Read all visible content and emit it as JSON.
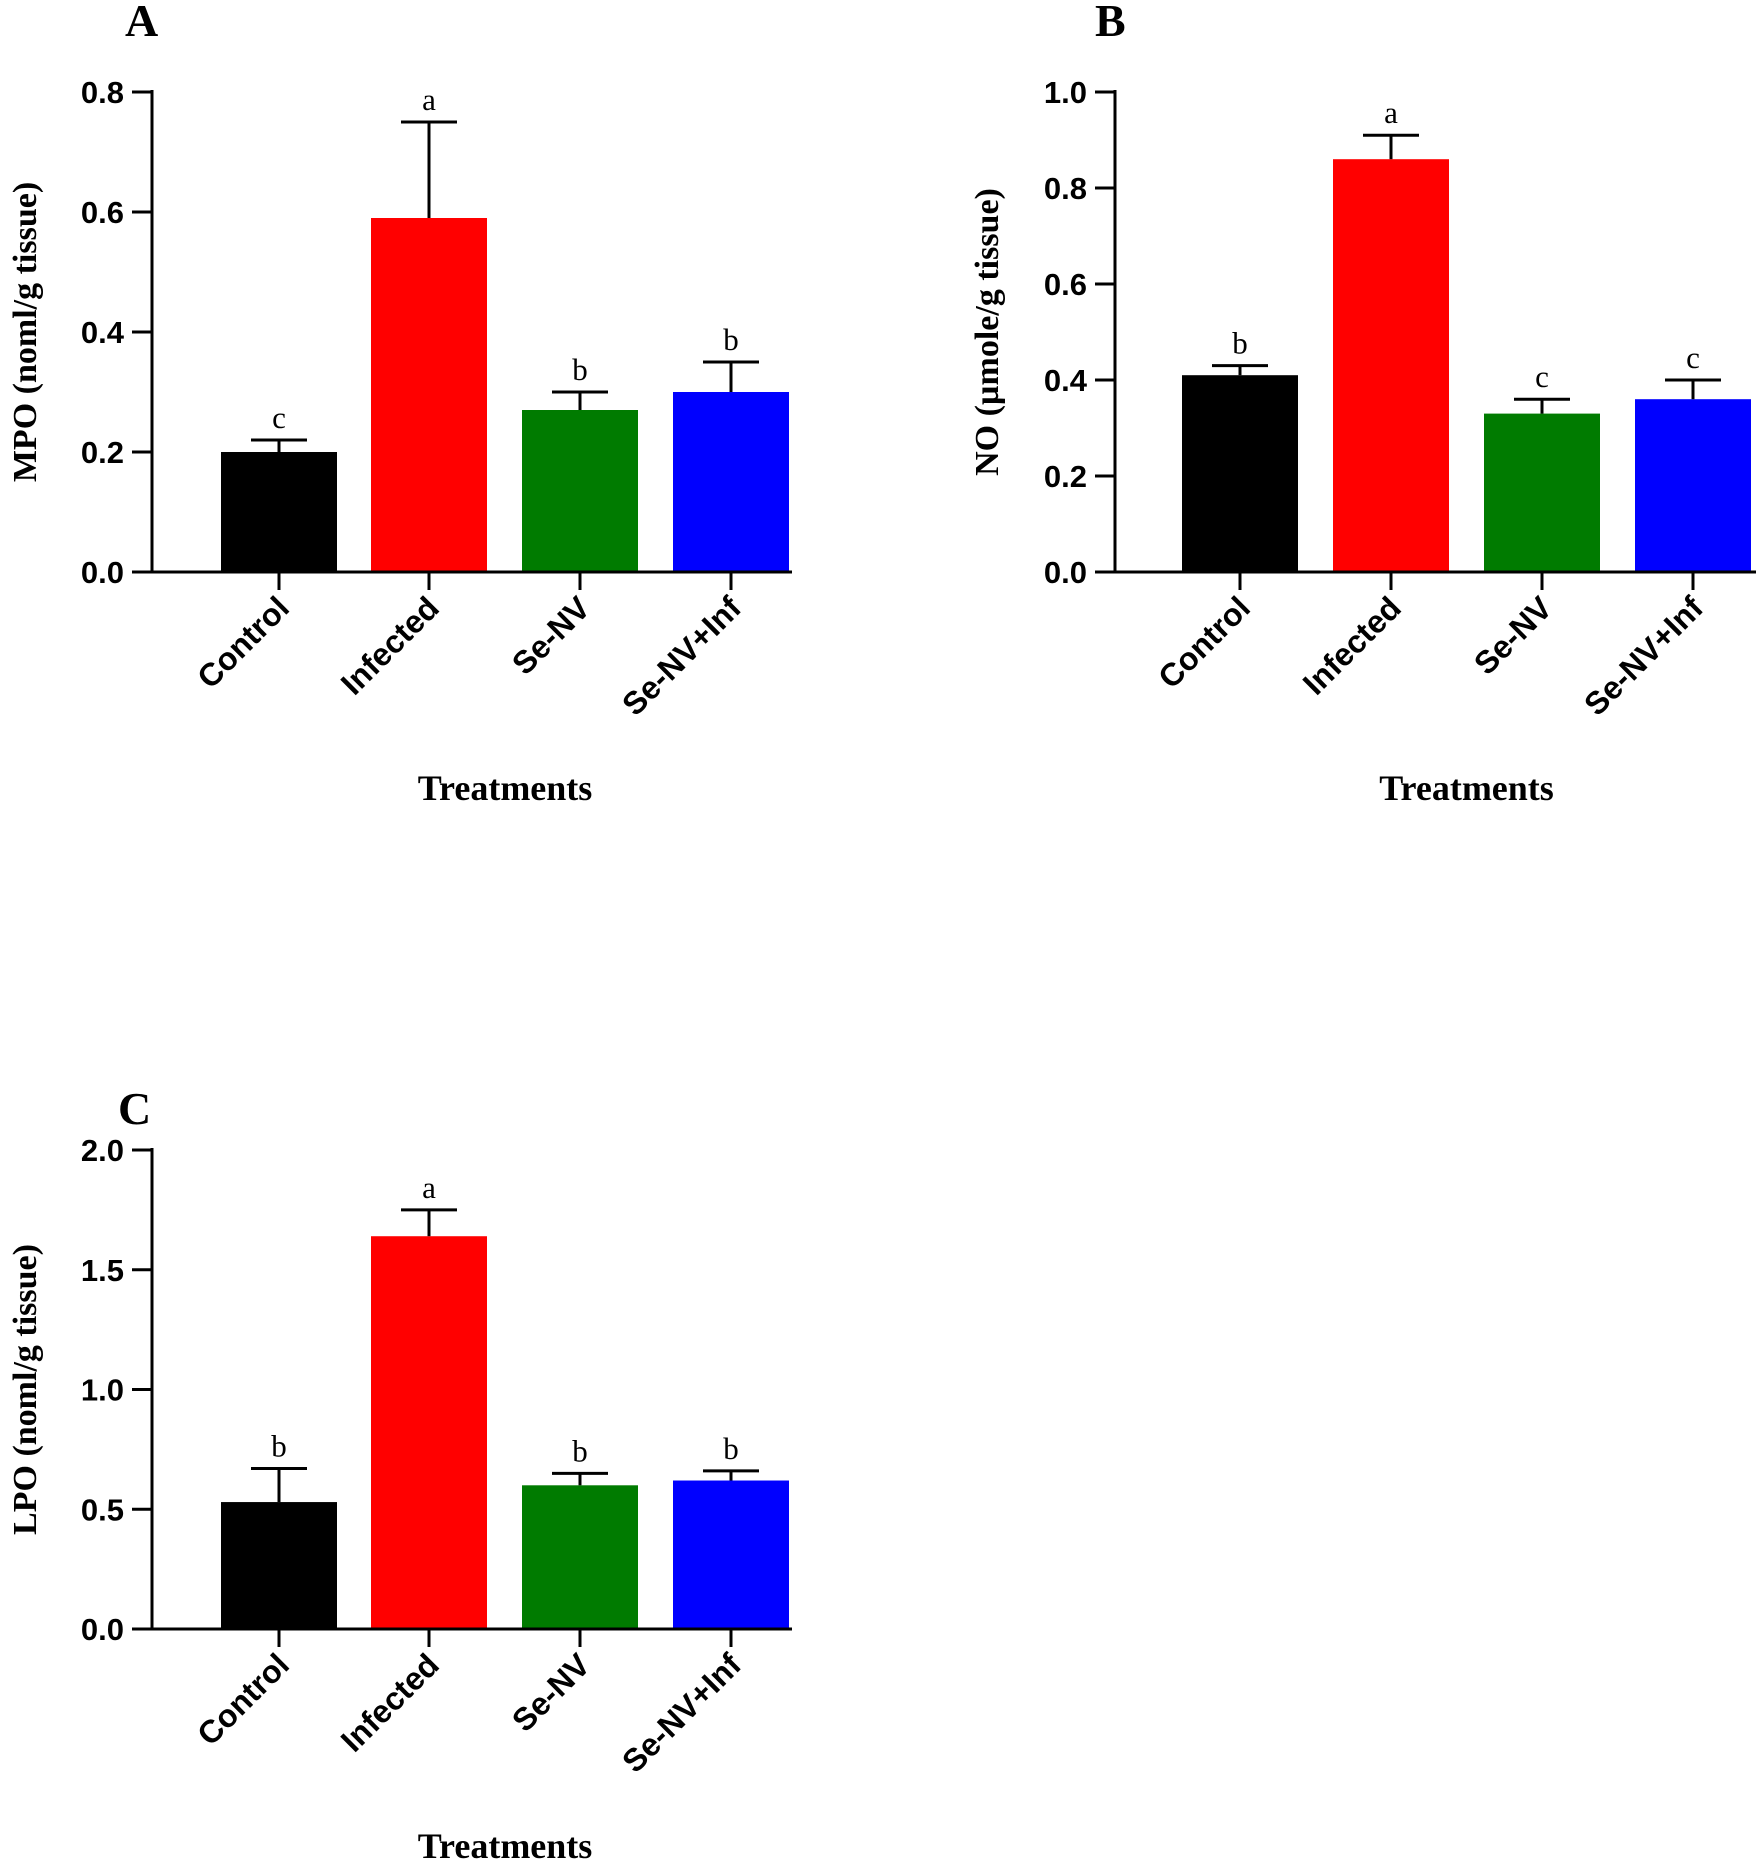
{
  "chart_data": [
    {
      "panel": "A",
      "type": "bar",
      "title": "",
      "xlabel": "Treatments",
      "ylabel": "MPO (noml/g tissue)",
      "ylim": [
        0,
        0.8
      ],
      "ytick_values": [
        0.0,
        0.2,
        0.4,
        0.6,
        0.8
      ],
      "yticks": [
        "0.0",
        "0.2",
        "0.4",
        "0.6",
        "0.8"
      ],
      "categories": [
        "Control",
        "Infected",
        "Se-NV",
        "Se-NV+Inf"
      ],
      "values": [
        0.2,
        0.59,
        0.27,
        0.3
      ],
      "errors": [
        0.02,
        0.16,
        0.03,
        0.05
      ],
      "significance": [
        "c",
        "a",
        "b",
        "b"
      ],
      "colors": [
        "#000000",
        "#ff0000",
        "#007b00",
        "#0000ff"
      ]
    },
    {
      "panel": "B",
      "type": "bar",
      "title": "",
      "xlabel": "Treatments",
      "ylabel": "NO (µmole/g tissue)",
      "ylim": [
        0,
        1.0
      ],
      "ytick_values": [
        0.0,
        0.2,
        0.4,
        0.6,
        0.8,
        1.0
      ],
      "yticks": [
        "0.0",
        "0.2",
        "0.4",
        "0.6",
        "0.8",
        "1.0"
      ],
      "categories": [
        "Control",
        "Infected",
        "Se-NV",
        "Se-NV+Inf"
      ],
      "values": [
        0.41,
        0.86,
        0.33,
        0.36
      ],
      "errors": [
        0.02,
        0.05,
        0.03,
        0.04
      ],
      "significance": [
        "b",
        "a",
        "c",
        "c"
      ],
      "colors": [
        "#000000",
        "#ff0000",
        "#007b00",
        "#0000ff"
      ]
    },
    {
      "panel": "C",
      "type": "bar",
      "title": "",
      "xlabel": "Treatments",
      "ylabel": "LPO (noml/g tissue)",
      "ylim": [
        0,
        2.0
      ],
      "ytick_values": [
        0.0,
        0.5,
        1.0,
        1.5,
        2.0
      ],
      "yticks": [
        "0.0",
        "0.5",
        "1.0",
        "1.5",
        "2.0"
      ],
      "categories": [
        "Control",
        "Infected",
        "Se-NV",
        "Se-NV+Inf"
      ],
      "values": [
        0.53,
        1.64,
        0.6,
        0.62
      ],
      "errors": [
        0.14,
        0.11,
        0.05,
        0.04
      ],
      "significance": [
        "b",
        "a",
        "b",
        "b"
      ],
      "colors": [
        "#000000",
        "#ff0000",
        "#007b00",
        "#0000ff"
      ]
    }
  ]
}
